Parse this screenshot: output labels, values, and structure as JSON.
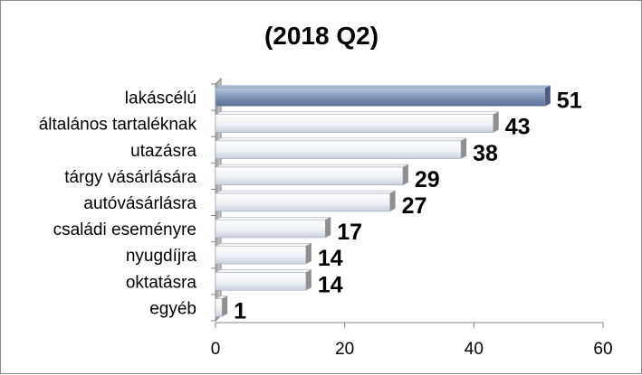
{
  "chart_data": {
    "type": "bar",
    "orientation": "horizontal",
    "title": "(2018 Q2)",
    "categories": [
      "lakáscélú",
      "általános tartaléknak",
      "utazásra",
      "tárgy vásárlására",
      "autóvásárlásra",
      "családi eseményre",
      "nyugdíjra",
      "oktatásra",
      "egyéb"
    ],
    "values": [
      51,
      43,
      38,
      29,
      27,
      17,
      14,
      14,
      1
    ],
    "xlim": [
      0,
      60
    ],
    "xticks": [
      "0",
      "20",
      "40",
      "60"
    ],
    "grid": false,
    "legend": "none",
    "colors": {
      "highlight_bar": "#7f92b6",
      "bar": "#e4e8ef",
      "bar_edge": "#9aa3b2",
      "bar_side": "#8f8f8f",
      "axis": "#868686",
      "wall": "#a6a6a6"
    }
  }
}
